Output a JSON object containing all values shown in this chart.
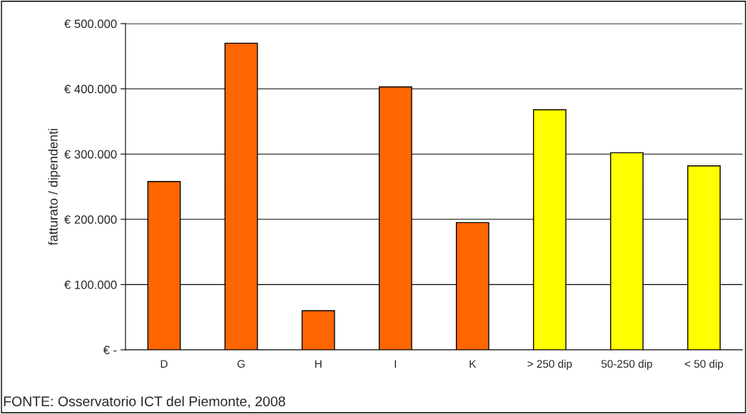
{
  "chart_data": {
    "type": "bar",
    "ylabel": "fatturato / dipendenti",
    "categories": [
      "D",
      "G",
      "H",
      "I",
      "K",
      "> 250 dip",
      "50-250 dip",
      "< 50 dip"
    ],
    "values": [
      258000,
      470000,
      60000,
      403000,
      195000,
      368000,
      302000,
      282000
    ],
    "colors": [
      "#ff6600",
      "#ff6600",
      "#ff6600",
      "#ff6600",
      "#ff6600",
      "#ffff00",
      "#ffff00",
      "#ffff00"
    ],
    "ylim": [
      0,
      500000
    ],
    "yticks": [
      {
        "value": 0,
        "label": "€ -"
      },
      {
        "value": 100000,
        "label": "€ 100.000"
      },
      {
        "value": 200000,
        "label": "€ 200.000"
      },
      {
        "value": 300000,
        "label": "€ 300.000"
      },
      {
        "value": 400000,
        "label": "€ 400.000"
      },
      {
        "value": 500000,
        "label": "€ 500.000"
      }
    ],
    "grid": "y",
    "annotations": [
      "FONTE: Osservatorio ICT del Piemonte, 2008"
    ]
  }
}
